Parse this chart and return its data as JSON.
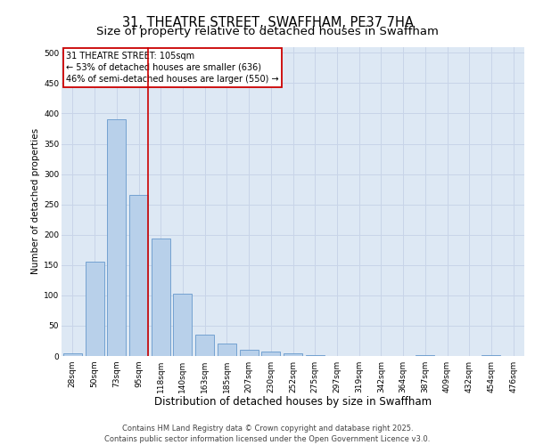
{
  "title": "31, THEATRE STREET, SWAFFHAM, PE37 7HA",
  "subtitle": "Size of property relative to detached houses in Swaffham",
  "xlabel": "Distribution of detached houses by size in Swaffham",
  "ylabel": "Number of detached properties",
  "categories": [
    "28sqm",
    "50sqm",
    "73sqm",
    "95sqm",
    "118sqm",
    "140sqm",
    "163sqm",
    "185sqm",
    "207sqm",
    "230sqm",
    "252sqm",
    "275sqm",
    "297sqm",
    "319sqm",
    "342sqm",
    "364sqm",
    "387sqm",
    "409sqm",
    "432sqm",
    "454sqm",
    "476sqm"
  ],
  "values": [
    5,
    155,
    390,
    265,
    193,
    103,
    35,
    20,
    11,
    8,
    5,
    2,
    0,
    0,
    0,
    0,
    2,
    0,
    0,
    1,
    0
  ],
  "bar_color": "#b8d0ea",
  "bar_edge_color": "#6699cc",
  "bar_edge_width": 0.6,
  "vline_color": "#cc0000",
  "annotation_line1": "31 THEATRE STREET: 105sqm",
  "annotation_line2": "← 53% of detached houses are smaller (636)",
  "annotation_line3": "46% of semi-detached houses are larger (550) →",
  "annotation_box_color": "#cc0000",
  "ylim": [
    0,
    510
  ],
  "yticks": [
    0,
    50,
    100,
    150,
    200,
    250,
    300,
    350,
    400,
    450,
    500
  ],
  "grid_color": "#c8d4e8",
  "background_color": "#dde8f4",
  "footer_line1": "Contains HM Land Registry data © Crown copyright and database right 2025.",
  "footer_line2": "Contains public sector information licensed under the Open Government Licence v3.0.",
  "title_fontsize": 10.5,
  "subtitle_fontsize": 9.5,
  "xlabel_fontsize": 8.5,
  "ylabel_fontsize": 7.5,
  "tick_fontsize": 6.5,
  "annotation_fontsize": 7,
  "footer_fontsize": 6
}
